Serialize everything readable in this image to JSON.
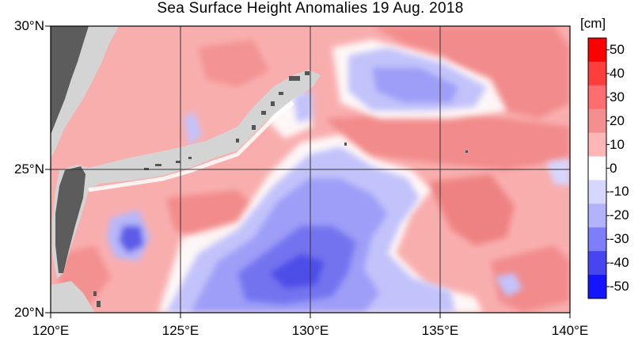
{
  "title": "Sea Surface Height Anomalies  19 Aug. 2018",
  "axes": {
    "lat_labels": [
      "30°N",
      "25°N",
      "20°N"
    ],
    "lon_labels": [
      "120°E",
      "125°E",
      "130°E",
      "135°E",
      "140°E"
    ]
  },
  "colorbar": {
    "unit": "[cm]",
    "labels": [
      "50",
      "40",
      "30",
      "20",
      "10",
      "0",
      "-10",
      "-20",
      "-30",
      "-40",
      "-50"
    ],
    "colors": [
      "#ff0000",
      "#ff3d3d",
      "#ff6e6e",
      "#f48f8f",
      "#ffb6b6",
      "#ffffff",
      "#d6d6ff",
      "#b2b2ff",
      "#7e7efa",
      "#4646f0",
      "#1414ff"
    ]
  },
  "land_color": "#d4d4d4",
  "island_color": "#5c5c5c"
}
